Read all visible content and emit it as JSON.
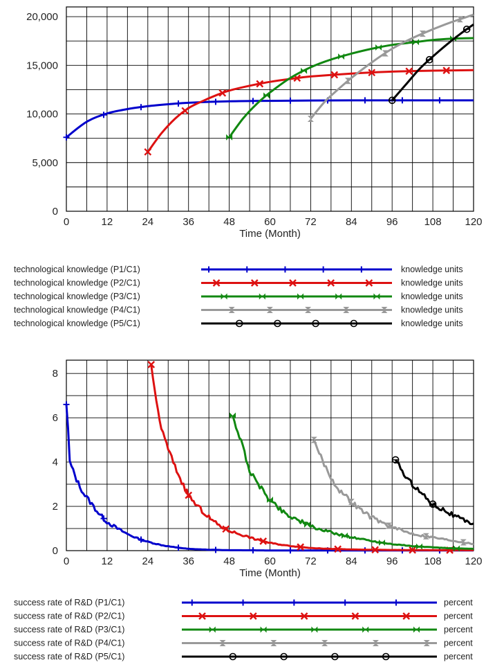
{
  "chart_data": [
    {
      "type": "line",
      "xlabel": "Time (Month)",
      "ylabel": "",
      "xlim": [
        0,
        120
      ],
      "ylim": [
        0,
        21000
      ],
      "x_ticks": [
        "0",
        "12",
        "24",
        "36",
        "48",
        "60",
        "72",
        "84",
        "96",
        "108",
        "120"
      ],
      "y_ticks": [
        "0",
        "5,000",
        "10,000",
        "15,000",
        "20,000"
      ],
      "y_tick_values": [
        0,
        5000,
        10000,
        15000,
        20000
      ],
      "grid": true,
      "legend_placement": "bottom",
      "series": [
        {
          "name": "technological knowledge (P1/C1)",
          "unit": "knowledge units",
          "color": "#0000cc",
          "marker": "plus",
          "x": [
            0,
            6,
            12,
            18,
            24,
            30,
            36,
            48,
            60,
            72,
            84,
            96,
            108,
            120
          ],
          "y": [
            7600,
            9200,
            10050,
            10500,
            10800,
            11000,
            11150,
            11300,
            11350,
            11380,
            11400,
            11400,
            11400,
            11400
          ]
        },
        {
          "name": "technological knowledge (P2/C1)",
          "unit": "knowledge units",
          "color": "#dd1111",
          "marker": "x",
          "x": [
            24,
            28,
            32,
            36,
            40,
            44,
            48,
            54,
            60,
            66,
            72,
            84,
            96,
            108,
            120
          ],
          "y": [
            6100,
            8000,
            9500,
            10600,
            11300,
            11900,
            12400,
            12900,
            13300,
            13600,
            13850,
            14150,
            14350,
            14450,
            14500
          ]
        },
        {
          "name": "technological knowledge (P3/C1)",
          "unit": "knowledge units",
          "color": "#118811",
          "marker": "bowtie",
          "x": [
            48,
            52,
            56,
            60,
            66,
            72,
            78,
            84,
            90,
            96,
            102,
            108,
            114,
            120
          ],
          "y": [
            7600,
            9500,
            11000,
            12200,
            13700,
            14800,
            15600,
            16200,
            16700,
            17100,
            17350,
            17600,
            17750,
            17800
          ]
        },
        {
          "name": "technological knowledge (P4/C1)",
          "unit": "knowledge units",
          "color": "#999999",
          "marker": "hourglass",
          "x": [
            72,
            76,
            80,
            84,
            90,
            96,
            102,
            108,
            114,
            120
          ],
          "y": [
            9500,
            11200,
            12500,
            13700,
            15300,
            16700,
            17800,
            18700,
            19500,
            20200
          ]
        },
        {
          "name": "technological knowledge (P5/C1)",
          "unit": "knowledge units",
          "color": "#000000",
          "marker": "circle",
          "x": [
            96,
            100,
            104,
            108,
            112,
            116,
            120
          ],
          "y": [
            11400,
            13000,
            14600,
            15900,
            17100,
            18200,
            19200
          ]
        }
      ]
    },
    {
      "type": "line",
      "xlabel": "Time (Month)",
      "ylabel": "",
      "xlim": [
        0,
        120
      ],
      "ylim": [
        0,
        8.6
      ],
      "x_ticks": [
        "0",
        "12",
        "24",
        "36",
        "48",
        "60",
        "72",
        "84",
        "96",
        "108",
        "120"
      ],
      "y_ticks": [
        "0",
        "2",
        "4",
        "6",
        "8"
      ],
      "y_tick_values": [
        0,
        2,
        4,
        6,
        8
      ],
      "grid": true,
      "legend_placement": "bottom",
      "series": [
        {
          "name": "success rate of R&D (P1/C1)",
          "unit": "percent",
          "color": "#0000cc",
          "marker": "plus",
          "x": [
            0,
            0.5,
            1,
            2,
            3,
            4,
            5,
            6,
            8,
            10,
            12,
            15,
            18,
            21,
            24,
            28,
            32,
            36,
            42,
            48,
            60,
            72,
            84,
            96,
            108,
            120
          ],
          "y": [
            6.6,
            5.5,
            4.0,
            3.6,
            3.2,
            2.9,
            2.6,
            2.4,
            2.0,
            1.6,
            1.3,
            1.0,
            0.75,
            0.55,
            0.4,
            0.25,
            0.15,
            0.08,
            0.04,
            0.02,
            0.01,
            0.01,
            0.01,
            0.01,
            0.01,
            0.01
          ]
        },
        {
          "name": "success rate of R&D (P2/C1)",
          "unit": "percent",
          "color": "#dd1111",
          "marker": "x",
          "x": [
            25,
            26,
            28,
            30,
            32,
            34,
            36,
            38,
            40,
            42,
            44,
            46,
            48,
            52,
            56,
            60,
            64,
            68,
            72,
            78,
            84,
            96,
            108,
            120
          ],
          "y": [
            8.4,
            7.2,
            5.5,
            4.6,
            3.8,
            3.1,
            2.5,
            2.1,
            1.8,
            1.5,
            1.25,
            1.05,
            0.9,
            0.7,
            0.5,
            0.35,
            0.25,
            0.18,
            0.12,
            0.08,
            0.05,
            0.03,
            0.02,
            0.02
          ]
        },
        {
          "name": "success rate of R&D (P3/C1)",
          "unit": "percent",
          "color": "#118811",
          "marker": "bowtie",
          "x": [
            49,
            50,
            52,
            54,
            56,
            58,
            60,
            62,
            64,
            66,
            68,
            70,
            72,
            76,
            80,
            84,
            88,
            92,
            96,
            102,
            108,
            114,
            120
          ],
          "y": [
            6.1,
            5.6,
            4.7,
            3.6,
            3.1,
            2.7,
            2.3,
            2.0,
            1.75,
            1.55,
            1.4,
            1.25,
            1.1,
            0.9,
            0.75,
            0.6,
            0.5,
            0.38,
            0.3,
            0.2,
            0.15,
            0.1,
            0.08
          ]
        },
        {
          "name": "success rate of R&D (P4/C1)",
          "unit": "percent",
          "color": "#999999",
          "marker": "hourglass",
          "x": [
            73,
            74,
            76,
            78,
            80,
            82,
            84,
            86,
            88,
            90,
            92,
            94,
            96,
            100,
            104,
            108,
            112,
            116,
            120
          ],
          "y": [
            5.0,
            4.6,
            3.9,
            3.3,
            2.8,
            2.5,
            2.2,
            1.95,
            1.7,
            1.5,
            1.35,
            1.2,
            1.05,
            0.85,
            0.7,
            0.6,
            0.5,
            0.4,
            0.3
          ]
        },
        {
          "name": "success rate of R&D (P5/C1)",
          "unit": "percent",
          "color": "#000000",
          "marker": "circle",
          "x": [
            97,
            98,
            100,
            102,
            104,
            106,
            108,
            110,
            112,
            114,
            116,
            118,
            120
          ],
          "y": [
            4.1,
            3.9,
            3.3,
            3.0,
            2.7,
            2.4,
            2.1,
            1.95,
            1.8,
            1.6,
            1.45,
            1.3,
            1.25
          ]
        }
      ]
    }
  ]
}
